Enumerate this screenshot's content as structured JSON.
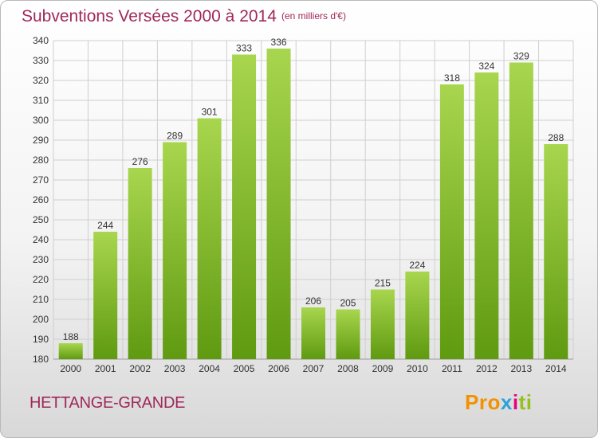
{
  "header": {
    "title": "Subventions Versées 2000 à 2014",
    "subtitle": "(en milliers d'€)"
  },
  "footer": {
    "place": "HETTANGE-GRANDE",
    "logo": [
      "Pro",
      "x",
      "i",
      "ti"
    ]
  },
  "colors": {
    "bar_top": "#a8d64e",
    "bar_bottom": "#5f9a10",
    "grid": "#cfcfcf",
    "text": "#a0285a"
  },
  "chart_data": {
    "type": "bar",
    "title": "Subventions Versées 2000 à 2014",
    "subtitle": "(en milliers d'€)",
    "categories": [
      "2000",
      "2001",
      "2002",
      "2003",
      "2004",
      "2005",
      "2006",
      "2007",
      "2008",
      "2009",
      "2010",
      "2011",
      "2012",
      "2013",
      "2014"
    ],
    "values": [
      188,
      244,
      276,
      289,
      301,
      333,
      336,
      206,
      205,
      215,
      224,
      318,
      324,
      329,
      288
    ],
    "ylim": [
      180,
      340
    ],
    "yticks": [
      180,
      190,
      200,
      210,
      220,
      230,
      240,
      250,
      260,
      270,
      280,
      290,
      300,
      310,
      320,
      330,
      340
    ],
    "grid": true,
    "legend": "none"
  }
}
